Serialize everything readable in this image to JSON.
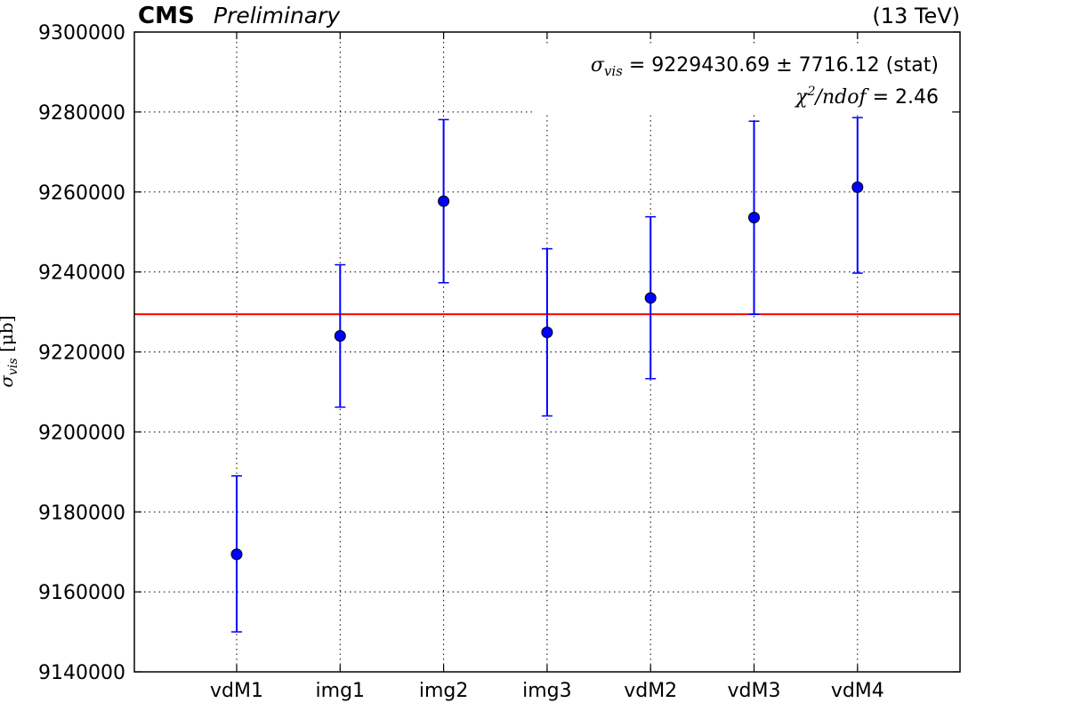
{
  "header": {
    "experiment": "CMS",
    "status": "Preliminary",
    "energy": "(13 TeV)"
  },
  "annotations": {
    "sigma_symbol": "σ",
    "sigma_sub": "vis",
    "sigma_value": " = 9229430.69 ± 7716.12 (stat)",
    "chi2_symbol": "χ",
    "chi2_sup": "2",
    "chi2_rest": "/ndof",
    "chi2_value": " = 2.46"
  },
  "chart_data": {
    "type": "scatter",
    "title": "",
    "xlabel": "",
    "ylabel": "σvis [μb]",
    "ylabel_parts": {
      "symbol": "σ",
      "sub": "vis",
      "unit": " [μb]"
    },
    "categories": [
      "vdM1",
      "img1",
      "img2",
      "img3",
      "vdM2",
      "vdM3",
      "vdM4"
    ],
    "ylim": [
      9140000,
      9300000
    ],
    "yticks": [
      9140000,
      9160000,
      9180000,
      9200000,
      9220000,
      9240000,
      9260000,
      9280000,
      9300000
    ],
    "grid": true,
    "series": [
      {
        "values": [
          9169400,
          9224000,
          9257700,
          9224900,
          9233500,
          9253600,
          9261200
        ],
        "err_low": [
          9150000,
          9206200,
          9237300,
          9204000,
          9213300,
          9229400,
          9239700
        ],
        "err_high": [
          9189000,
          9241800,
          9278100,
          9245800,
          9253800,
          9277700,
          9278600
        ],
        "color": "#0000ff"
      }
    ],
    "fit_line": {
      "value": 9229430.69,
      "color": "#ff0000"
    }
  }
}
